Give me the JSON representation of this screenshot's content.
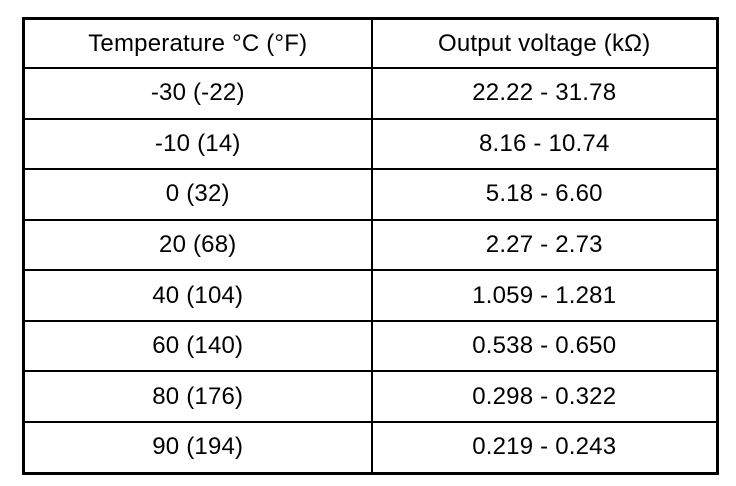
{
  "table": {
    "headers": [
      "Temperature °C (°F)",
      "Output voltage (kΩ)"
    ],
    "rows": [
      [
        "-30 (-22)",
        "22.22 - 31.78"
      ],
      [
        "-10 (14)",
        "8.16 - 10.74"
      ],
      [
        "0 (32)",
        "5.18 - 6.60"
      ],
      [
        "20 (68)",
        "2.27 - 2.73"
      ],
      [
        "40 (104)",
        "1.059 - 1.281"
      ],
      [
        "60 (140)",
        "0.538 - 0.650"
      ],
      [
        "80 (176)",
        "0.298 - 0.322"
      ],
      [
        "90 (194)",
        "0.219 - 0.243"
      ]
    ]
  }
}
